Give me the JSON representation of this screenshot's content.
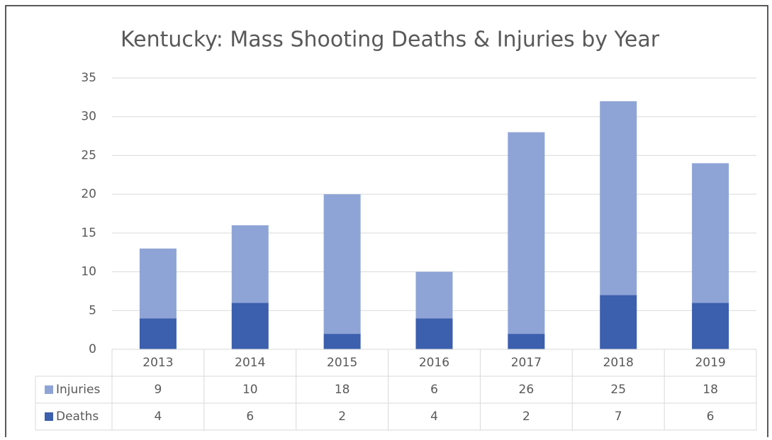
{
  "chart_data": {
    "type": "stacked_bar",
    "title": "Kentucky: Mass Shooting Deaths & Injuries by Year",
    "categories": [
      "2013",
      "2014",
      "2015",
      "2016",
      "2017",
      "2018",
      "2019"
    ],
    "series": [
      {
        "name": "Injuries",
        "color": "#8fa4d6",
        "values": [
          9,
          10,
          18,
          6,
          26,
          25,
          18
        ]
      },
      {
        "name": "Deaths",
        "color": "#3c5fae",
        "values": [
          4,
          6,
          2,
          4,
          2,
          7,
          6
        ]
      }
    ],
    "ylim": [
      0,
      35
    ],
    "yticks": [
      0,
      5,
      10,
      15,
      20,
      25,
      30,
      35
    ],
    "grid": true,
    "data_table": true
  }
}
